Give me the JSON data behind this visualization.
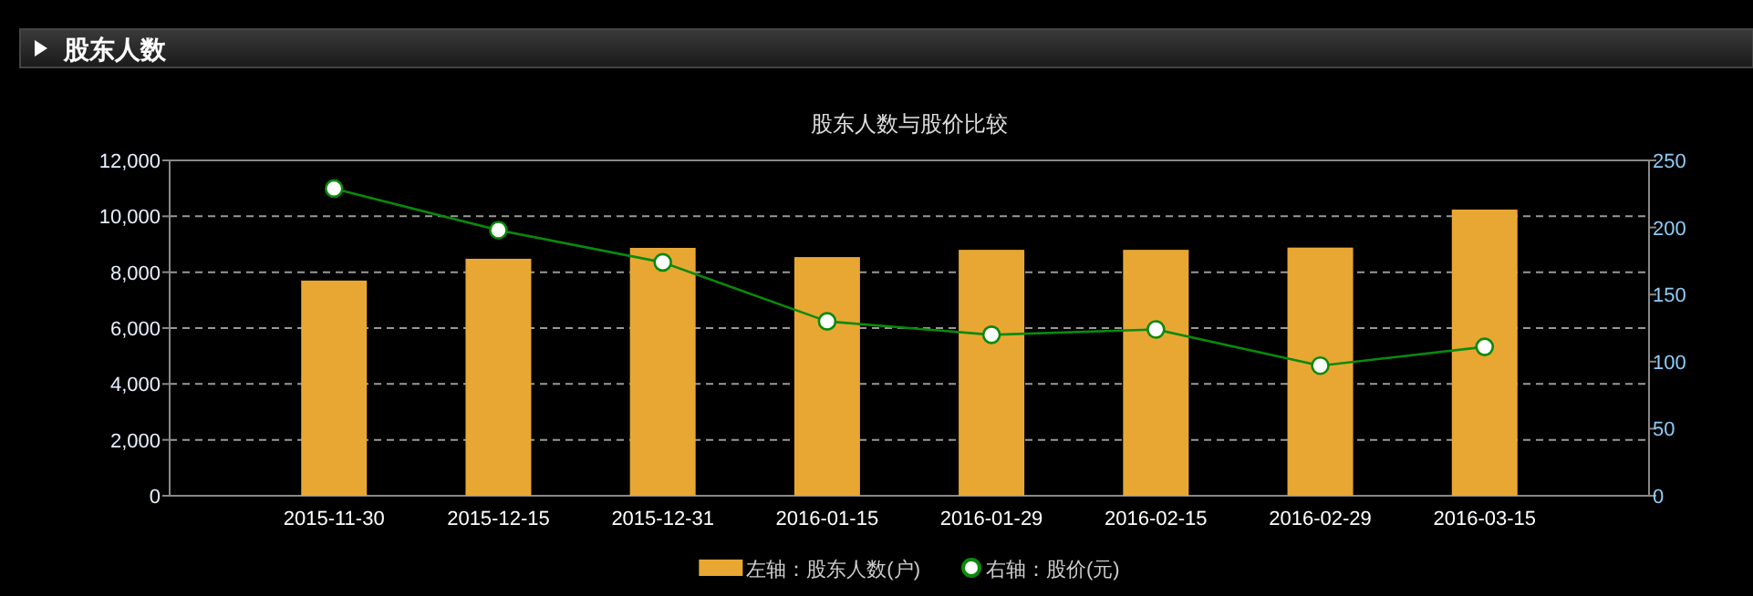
{
  "chart_data": {
    "type": "bar",
    "title": "股东人数与股价比较",
    "annotations": [
      "股东人数"
    ],
    "categories": [
      "2015-11-30",
      "2015-12-15",
      "2015-12-31",
      "2016-01-15",
      "2016-01-29",
      "2016-02-15",
      "2016-02-29",
      "2016-03-15"
    ],
    "series": [
      {
        "name": "左轴：股东人数(户)",
        "color": "#e8a733",
        "values": [
          7700,
          8480,
          8870,
          8540,
          8800,
          8800,
          8880,
          10240
        ]
      },
      {
        "name": "右轴：股价(元)",
        "type": "line",
        "axis": "y2",
        "color": "#0a8a0a",
        "marker": "circle",
        "values": [
          229,
          198,
          174,
          130,
          120,
          124,
          97,
          111
        ]
      }
    ],
    "ylim": [
      0,
      12000
    ],
    "yticks": [
      0,
      {
        "value": 2000,
        "label": "2,000"
      },
      {
        "value": 4000,
        "label": "4,000"
      },
      {
        "value": 6000,
        "label": "6,000"
      },
      {
        "value": 8000,
        "label": "8,000"
      },
      {
        "value": 10000,
        "label": "10,000"
      },
      {
        "value": 12000,
        "label": "12,000"
      }
    ],
    "y2lim": [
      0,
      250
    ],
    "y2ticks": [
      0,
      50,
      100,
      150,
      200,
      250
    ],
    "grid": "y",
    "legend": "bottom"
  }
}
